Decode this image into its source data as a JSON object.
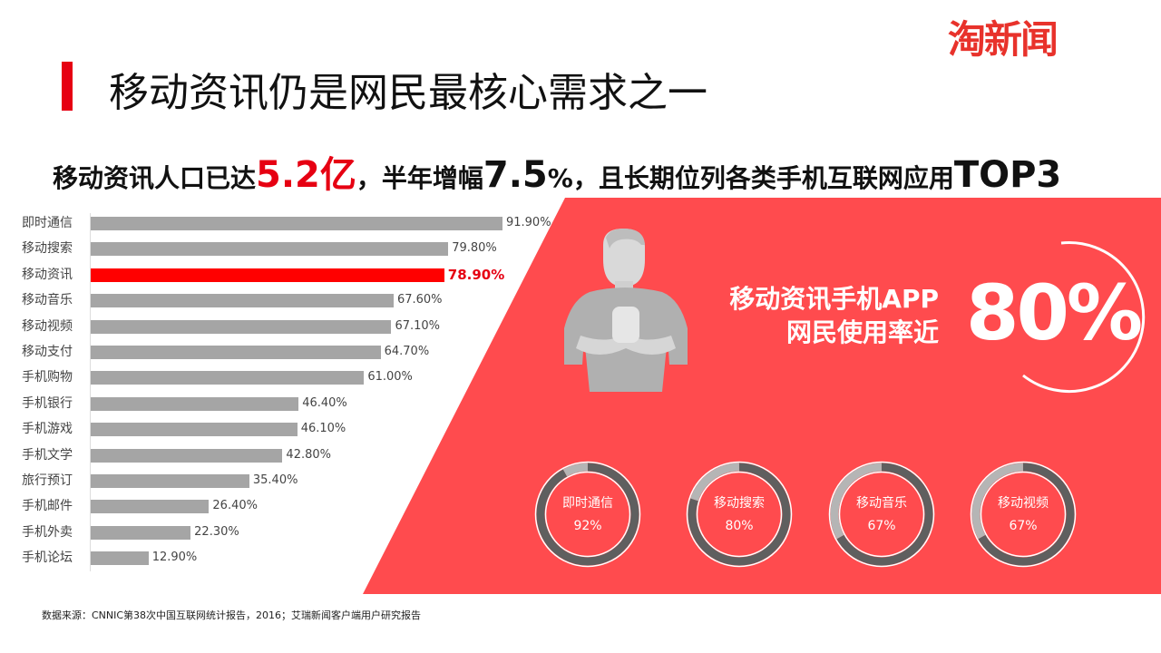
{
  "logo": {
    "text": "淘新闻",
    "mid": "新"
  },
  "title": "移动资讯仍是网民最核心需求之一",
  "subtitle": {
    "p1": "移动资讯人口已达",
    "n1": "5.2",
    "u1": "亿",
    "p2": "，半年增幅",
    "n2": "7.5",
    "u2": "%",
    "p3": "，且长期位列各类手机互联网应用",
    "n3": "TOP3"
  },
  "chart_data": [
    {
      "type": "bar",
      "orientation": "horizontal",
      "categories": [
        "即时通信",
        "移动搜索",
        "移动资讯",
        "移动音乐",
        "移动视频",
        "移动支付",
        "手机购物",
        "手机银行",
        "手机游戏",
        "手机文学",
        "旅行预订",
        "手机邮件",
        "手机外卖",
        "手机论坛"
      ],
      "values": [
        91.9,
        79.8,
        78.9,
        67.6,
        67.1,
        64.7,
        61.0,
        46.4,
        46.1,
        42.8,
        35.4,
        26.4,
        22.3,
        12.9
      ],
      "labels": [
        "91.90%",
        "79.80%",
        "78.90%",
        "67.60%",
        "67.10%",
        "64.70%",
        "61.00%",
        "46.40%",
        "46.10%",
        "42.80%",
        "35.40%",
        "26.40%",
        "22.30%",
        "12.90%"
      ],
      "highlight_index": 2,
      "colors": {
        "bar": "#a5a5a5",
        "highlight": "#ff0000"
      }
    },
    {
      "type": "pie",
      "variant": "donut",
      "items": [
        {
          "name": "即时通信",
          "value": 92,
          "label": "92%"
        },
        {
          "name": "移动搜索",
          "value": 80,
          "label": "80%"
        },
        {
          "name": "移动音乐",
          "value": 67,
          "label": "67%"
        },
        {
          "name": "移动视频",
          "value": 67,
          "label": "67%"
        }
      ],
      "colors": {
        "filled": "#5f5f5f",
        "rest": "#b5b5b5"
      }
    }
  ],
  "headline": {
    "line1": "移动资讯手机APP",
    "line2": "网民使用率近",
    "value": "80%"
  },
  "colors": {
    "panel": "#ff4b4e",
    "accent": "#e60012"
  },
  "footer": "数据来源：CNNIC第38次中国互联网统计报告，2016；艾瑞新闻客户端用户研究报告"
}
